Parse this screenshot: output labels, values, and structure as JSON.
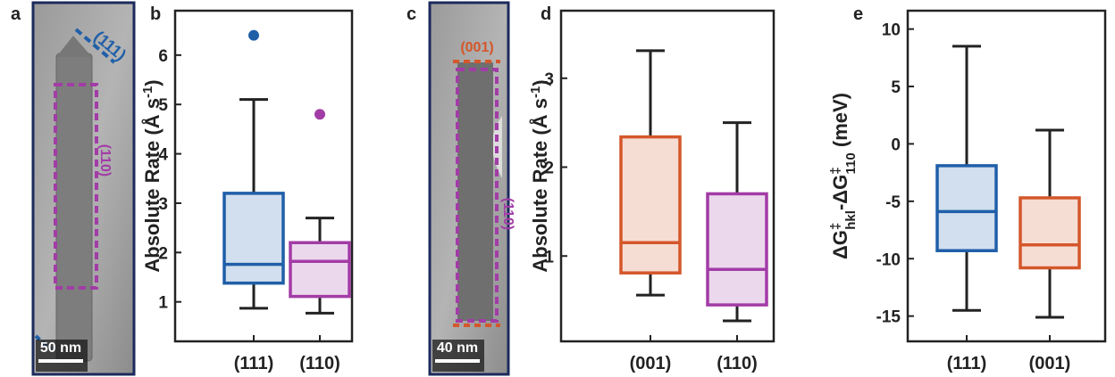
{
  "images": [
    {
      "label": "a",
      "scale_bar": "50 nm",
      "annotations": [
        "(111)",
        "(110)"
      ]
    },
    {
      "label": "c",
      "scale_bar": "40 nm",
      "annotations": [
        "(001)",
        "(110)"
      ]
    }
  ],
  "chart_data": [
    {
      "type": "box",
      "label": "b",
      "ylabel_parts": [
        "Absolute Rate (Å s",
        "-1",
        ")"
      ],
      "categories": [
        "(111)",
        "(110)"
      ],
      "boxes": [
        {
          "color": "#1f5fa8",
          "min": 0.87,
          "q1": 1.38,
          "median": 1.76,
          "q3": 3.2,
          "max": 5.1,
          "outliers": [
            6.4
          ]
        },
        {
          "color": "#a23ca6",
          "min": 0.77,
          "q1": 1.11,
          "median": 1.82,
          "q3": 2.2,
          "max": 2.7,
          "outliers": [
            4.8
          ]
        }
      ],
      "ylim": [
        0.2,
        6.9
      ],
      "yticks": [
        1,
        2,
        3,
        4,
        5,
        6
      ]
    },
    {
      "type": "box",
      "label": "d",
      "ylabel_parts": [
        "Absolute Rate (Å s",
        "-1",
        ")"
      ],
      "categories": [
        "(001)",
        "(110)"
      ],
      "boxes": [
        {
          "color": "#d4572a",
          "min": 0.56,
          "q1": 0.81,
          "median": 1.15,
          "q3": 2.34,
          "max": 3.31
        },
        {
          "color": "#a23ca6",
          "min": 0.27,
          "q1": 0.45,
          "median": 0.85,
          "q3": 1.7,
          "max": 2.5
        }
      ],
      "ylim": [
        0.04,
        3.76
      ],
      "yticks": [
        1,
        2,
        3
      ]
    },
    {
      "type": "box",
      "label": "e",
      "ylabel_parts": [
        "ΔG",
        "‡",
        "hkl",
        "-ΔG",
        "‡",
        "110",
        " (meV)"
      ],
      "categories": [
        "(111)",
        "(001)"
      ],
      "boxes": [
        {
          "color": "#1f5fa8",
          "min": -14.5,
          "q1": -9.3,
          "median": -5.9,
          "q3": -1.9,
          "max": 8.5
        },
        {
          "color": "#d4572a",
          "min": -15.1,
          "q1": -10.8,
          "median": -8.8,
          "q3": -4.7,
          "max": 1.2
        }
      ],
      "ylim": [
        -17.2,
        11.6
      ],
      "yticks": [
        10,
        5,
        0,
        -5,
        -10,
        -15
      ]
    }
  ]
}
